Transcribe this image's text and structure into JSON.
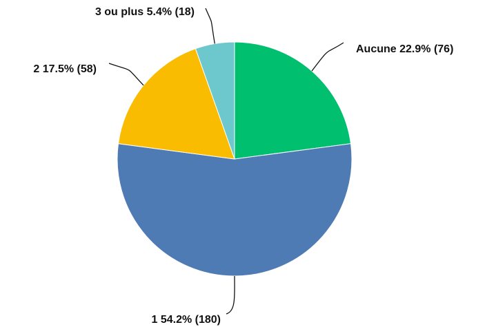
{
  "chart_data": {
    "type": "pie",
    "categories": [
      "Aucune",
      "1",
      "2",
      "3 ou plus"
    ],
    "values": [
      22.9,
      54.2,
      17.5,
      5.4
    ],
    "value_labels": [
      "22.9% (76)",
      "54.2% (180)",
      "17.5% (58)",
      "5.4% (18)"
    ],
    "colors": [
      "#00bf6f",
      "#4f7bb5",
      "#f9bc00",
      "#6dc8cd"
    ]
  }
}
